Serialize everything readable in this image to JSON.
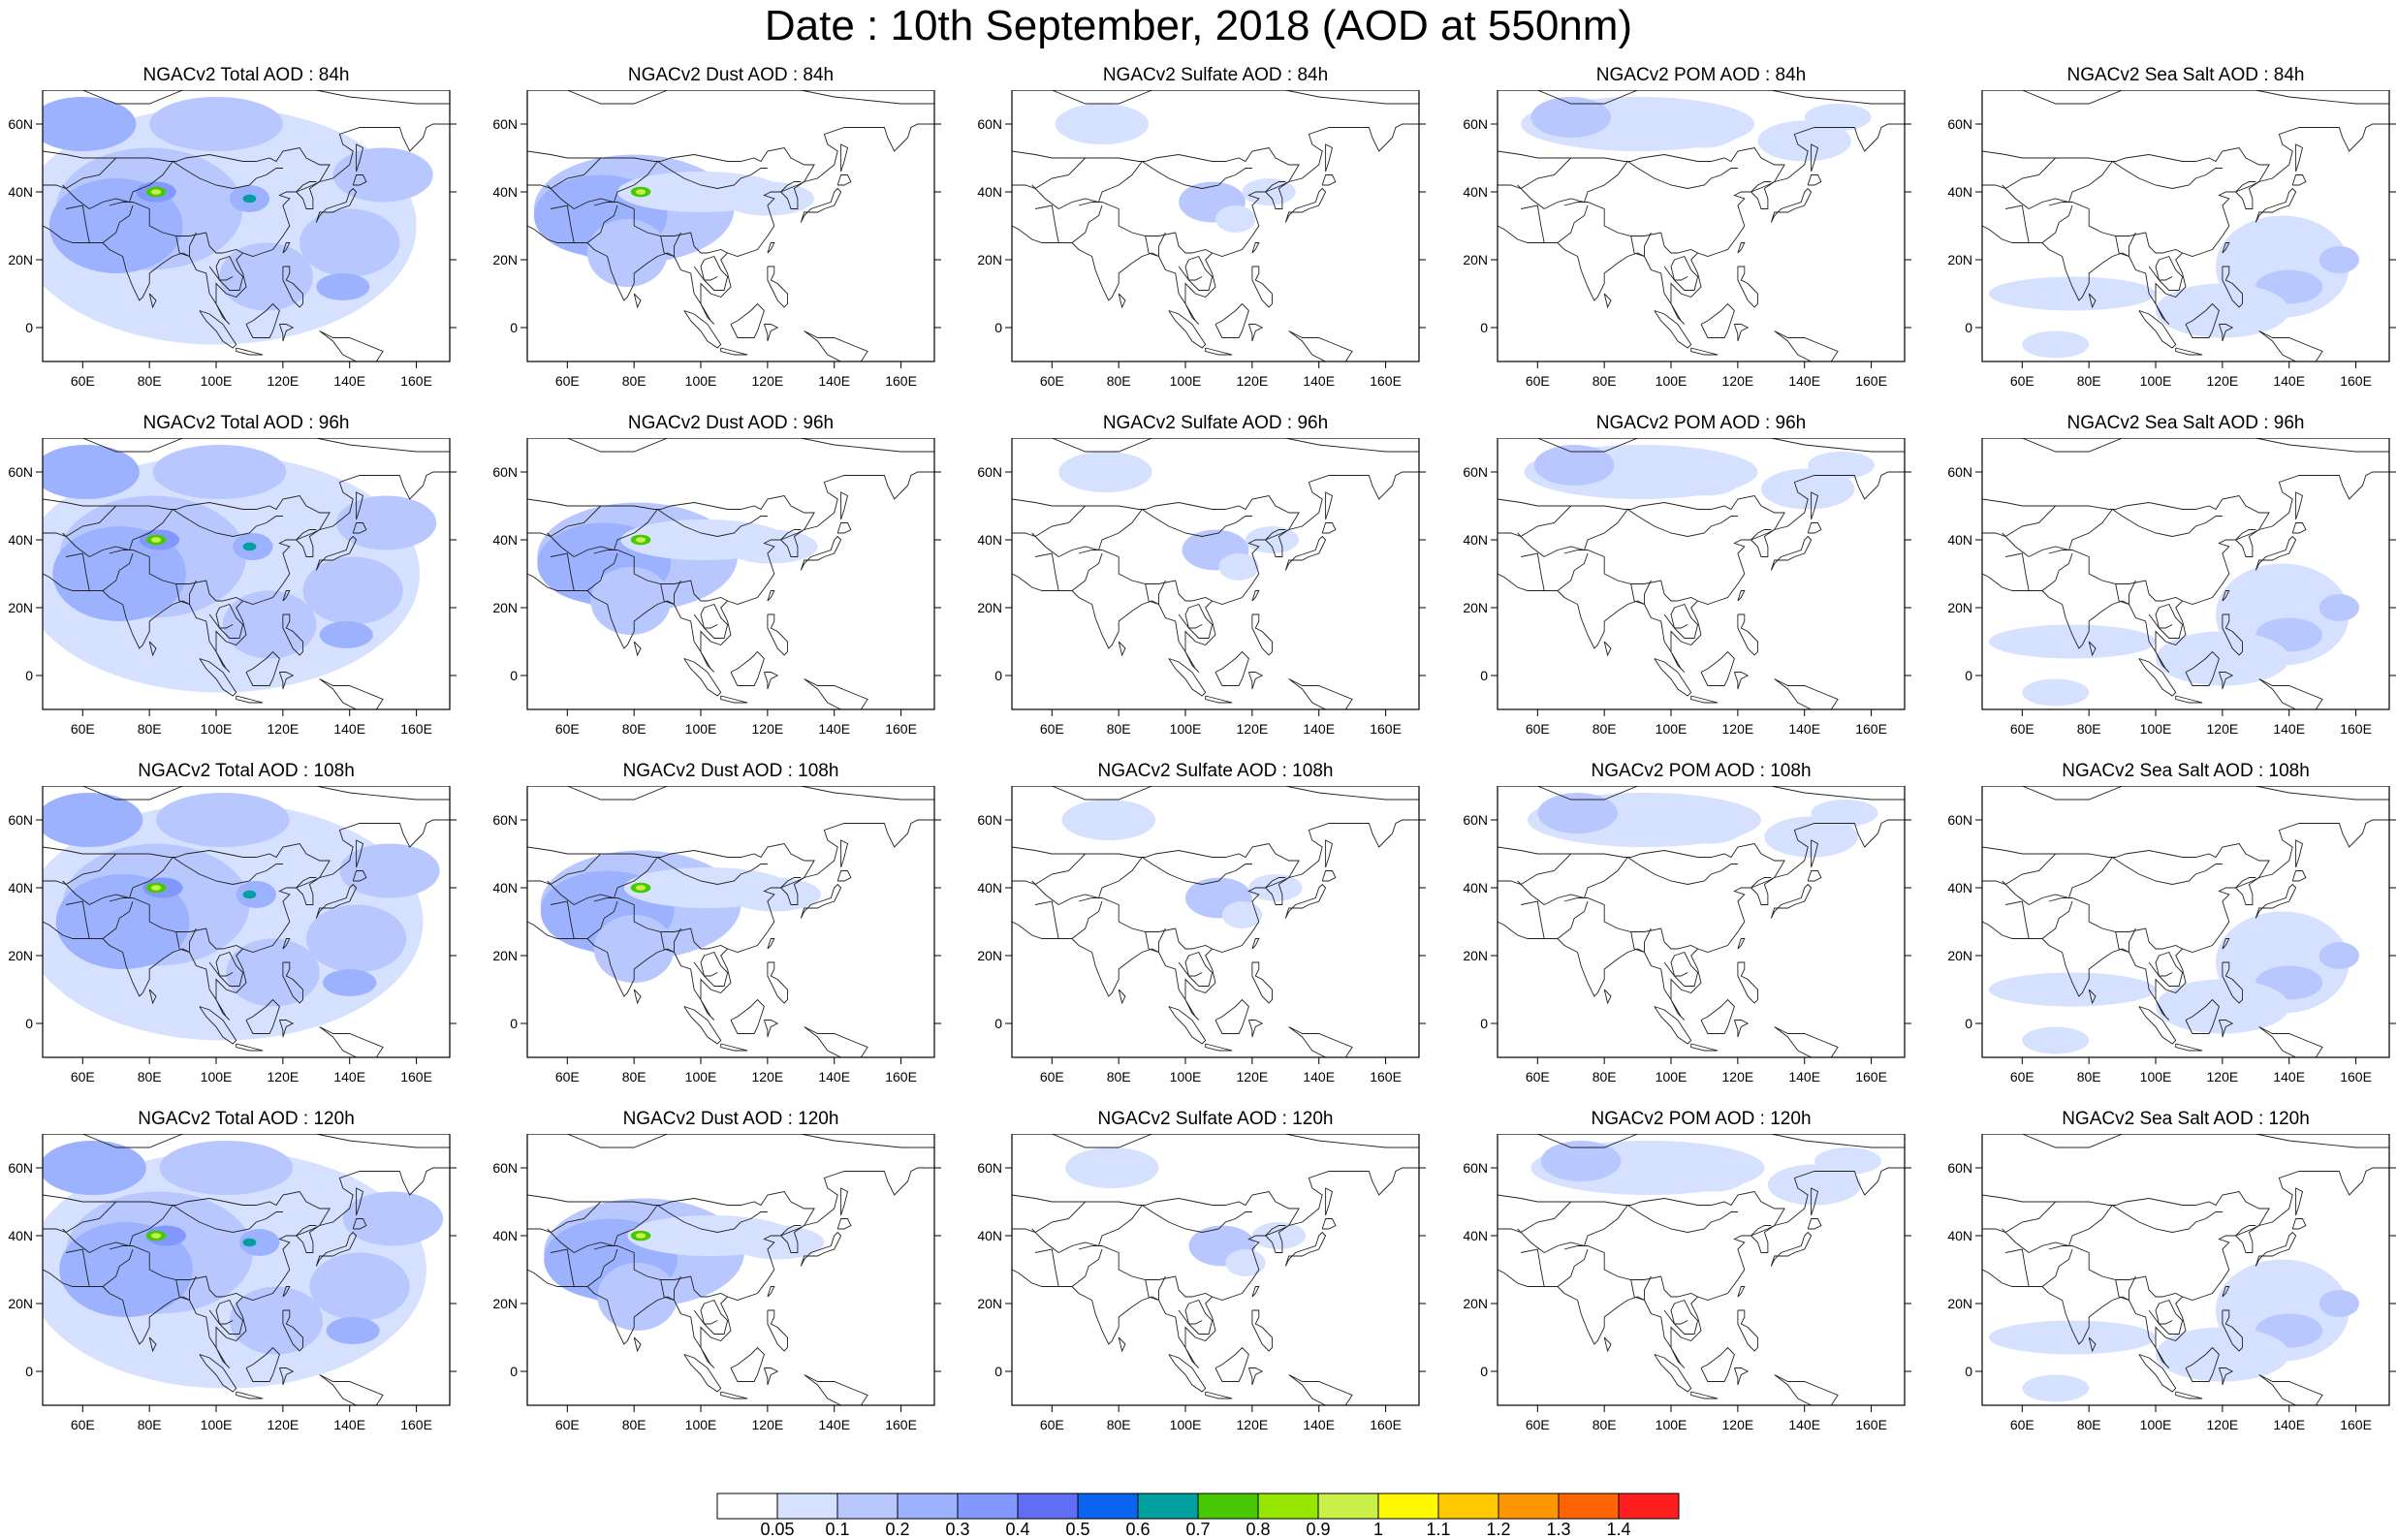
{
  "title": "Date : 10th September, 2018 (AOD at 550nm)",
  "map": {
    "lon_range": [
      48,
      170
    ],
    "lat_range": [
      -10,
      70
    ],
    "lon_ticks": [
      "60E",
      "80E",
      "100E",
      "120E",
      "140E",
      "160E"
    ],
    "lat_ticks": [
      "60N",
      "40N",
      "20N",
      "0"
    ]
  },
  "panels": [
    [
      "NGACv2 Total AOD : 84h",
      "NGACv2 Dust AOD : 84h",
      "NGACv2 Sulfate AOD : 84h",
      "NGACv2 POM AOD : 84h",
      "NGACv2 Sea Salt AOD : 84h"
    ],
    [
      "NGACv2 Total AOD : 96h",
      "NGACv2 Dust AOD : 96h",
      "NGACv2 Sulfate AOD : 96h",
      "NGACv2 POM AOD : 96h",
      "NGACv2 Sea Salt AOD : 96h"
    ],
    [
      "NGACv2 Total AOD : 108h",
      "NGACv2 Dust AOD : 108h",
      "NGACv2 Sulfate AOD : 108h",
      "NGACv2 POM AOD : 108h",
      "NGACv2 Sea Salt AOD : 108h"
    ],
    [
      "NGACv2 Total AOD : 120h",
      "NGACv2 Dust AOD : 120h",
      "NGACv2 Sulfate AOD : 120h",
      "NGACv2 POM AOD : 120h",
      "NGACv2 Sea Salt  AOD : 120h"
    ]
  ],
  "colorbar": {
    "labels": [
      "0.05",
      "0.1",
      "0.2",
      "0.3",
      "0.4",
      "0.5",
      "0.6",
      "0.7",
      "0.8",
      "0.9",
      "1",
      "1.1",
      "1.2",
      "1.3",
      "1.4"
    ],
    "colors": [
      "#ffffff",
      "#d6e0ff",
      "#b8c8ff",
      "#9cb2ff",
      "#8098ff",
      "#5f6ef5",
      "#0a64f0",
      "#00a0a0",
      "#48c800",
      "#96e600",
      "#c8f046",
      "#fffa00",
      "#ffc800",
      "#ff9600",
      "#ff6400",
      "#ff1e1e"
    ]
  }
}
